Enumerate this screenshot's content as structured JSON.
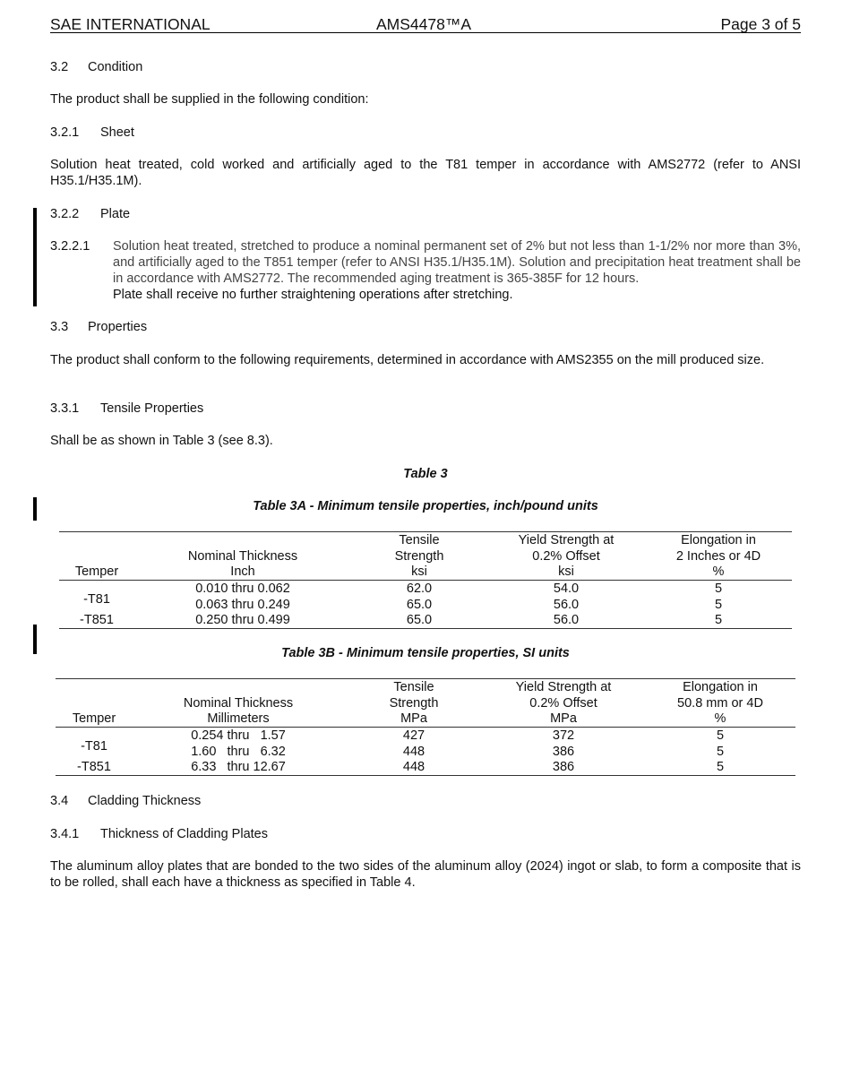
{
  "header": {
    "org": "SAE INTERNATIONAL",
    "doc": "AMS4478™A",
    "page": "Page 3 of 5"
  },
  "sections": {
    "s32": {
      "num": "3.2",
      "title": "Condition"
    },
    "s32_text": "The product shall be supplied in the following condition:",
    "s321": {
      "num": "3.2.1",
      "title": "Sheet"
    },
    "s321_text": "Solution heat treated, cold worked and artificially aged to the T81 temper in accordance with AMS2772 (refer to ANSI H35.1/H35.1M).",
    "s322": {
      "num": "3.2.2",
      "title": "Plate"
    },
    "s3221": {
      "num": "3.2.2.1",
      "text": "Solution heat treated, stretched to produce a nominal permanent set of 2% but not less than 1-1/2% nor more than 3%, and artificially aged to the T851 temper (refer to ANSI H35.1/H35.1M). Solution and precipitation heat treatment shall be in accordance with AMS2772. The recommended aging treatment is 365-385F for 12 hours.",
      "text2": "Plate shall receive no further straightening operations after stretching."
    },
    "s33": {
      "num": "3.3",
      "title": "Properties"
    },
    "s33_text": "The product shall conform to the following requirements, determined in accordance with AMS2355 on the mill produced size.",
    "s331": {
      "num": "3.3.1",
      "title": "Tensile Properties"
    },
    "s331_text": "Shall be as shown in Table 3 (see 8.3).",
    "s34": {
      "num": "3.4",
      "title": "Cladding Thickness"
    },
    "s341": {
      "num": "3.4.1",
      "title": "Thickness of Cladding Plates"
    },
    "s341_text": "The aluminum alloy plates that are bonded to the two sides of the aluminum alloy (2024) ingot or slab, to form a composite that is to be rolled, shall each have a thickness as specified in Table 4."
  },
  "table3": {
    "title": "Table 3",
    "a": {
      "caption": "Table 3A - Minimum tensile properties, inch/pound units",
      "headers": [
        [
          "",
          "",
          "Temper"
        ],
        [
          "",
          "Nominal Thickness",
          "Inch"
        ],
        [
          "Tensile",
          "Strength",
          "ksi"
        ],
        [
          "Yield Strength at",
          "0.2% Offset",
          "ksi"
        ],
        [
          "Elongation in",
          "2 Inches or 4D",
          "%"
        ]
      ],
      "temper_rows": [
        "-T81",
        "-T851"
      ],
      "rows": [
        [
          "0.010 thru 0.062",
          "62.0",
          "54.0",
          "5"
        ],
        [
          "0.063 thru 0.249",
          "65.0",
          "56.0",
          "5"
        ],
        [
          "0.250 thru 0.499",
          "65.0",
          "56.0",
          "5"
        ]
      ]
    },
    "b": {
      "caption": "Table 3B - Minimum tensile properties, SI units",
      "headers": [
        [
          "",
          "",
          "Temper"
        ],
        [
          "",
          "Nominal Thickness",
          "Millimeters"
        ],
        [
          "Tensile",
          "Strength",
          "MPa"
        ],
        [
          "Yield Strength at",
          "0.2% Offset",
          "MPa"
        ],
        [
          "Elongation in",
          "50.8 mm or 4D",
          "%"
        ]
      ],
      "temper_rows": [
        "-T81",
        "-T851"
      ],
      "rows": [
        [
          "0.254 thru   1.57",
          "427",
          "372",
          "5"
        ],
        [
          "1.60   thru   6.32",
          "448",
          "386",
          "5"
        ],
        [
          "6.33   thru 12.67",
          "448",
          "386",
          "5"
        ]
      ]
    }
  }
}
